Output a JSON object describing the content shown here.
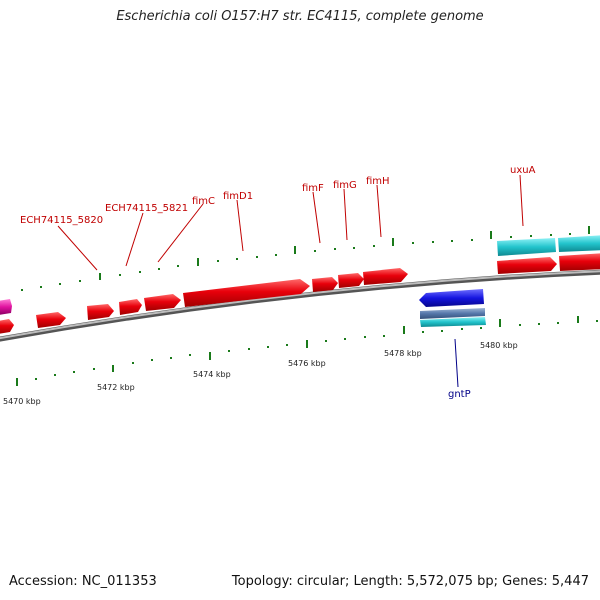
{
  "title": "Escherichia coli O157:H7 str. EC4115, complete genome",
  "footer": {
    "accession": "Accession: NC_011353",
    "summary": "Topology: circular; Length: 5,572,075 bp; Genes: 5,447"
  },
  "colors": {
    "forward_gene": "#e8000b",
    "cds_cyan": "#22c4cc",
    "reverse_gene": "#1515e0",
    "reverse_grey": "#5577aa",
    "magenta_gene": "#e0119f",
    "forward_label": "#c00000",
    "reverse_label": "#000088",
    "tick": "#1a7a1a",
    "backbone": "#808080"
  },
  "genes_forward": [
    {
      "name": "ECH74115_5820"
    },
    {
      "name": "ECH74115_5821"
    },
    {
      "name": "fimC"
    },
    {
      "name": "fimD1"
    },
    {
      "name": "fimF"
    },
    {
      "name": "fimG"
    },
    {
      "name": "fimH"
    },
    {
      "name": "uxuA"
    }
  ],
  "genes_reverse": [
    {
      "name": "gntP"
    }
  ],
  "scale_labels": [
    "5470 kbp",
    "5472 kbp",
    "5474 kbp",
    "5476 kbp",
    "5478 kbp",
    "5480 kbp"
  ]
}
